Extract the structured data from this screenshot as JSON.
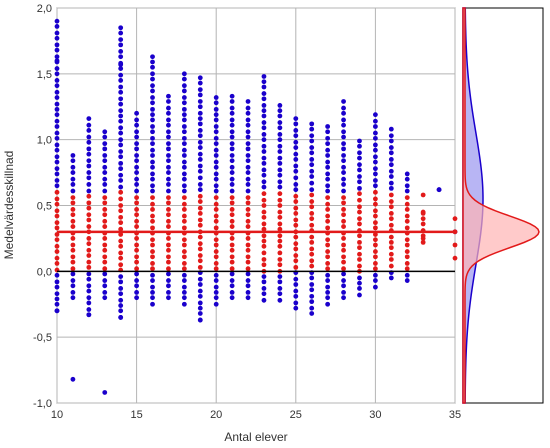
{
  "chart_data": {
    "type": "scatter",
    "xlabel": "Antal elever",
    "ylabel": "Medelvärdesskillnad",
    "xlim": [
      10,
      35
    ],
    "ylim": [
      -1.0,
      2.0
    ],
    "x_ticks": [
      {
        "value": 10,
        "label": "10"
      },
      {
        "value": 15,
        "label": "15"
      },
      {
        "value": 20,
        "label": "20"
      },
      {
        "value": 25,
        "label": "25"
      },
      {
        "value": 30,
        "label": "30"
      },
      {
        "value": 35,
        "label": "35"
      }
    ],
    "y_ticks": [
      {
        "value": 2.0,
        "label": "2,0"
      },
      {
        "value": 1.5,
        "label": "1,5"
      },
      {
        "value": 1.0,
        "label": "1,0"
      },
      {
        "value": 0.5,
        "label": "0,5"
      },
      {
        "value": 0.0,
        "label": "0,0"
      },
      {
        "value": -0.5,
        "label": "-0,5"
      },
      {
        "value": -1.0,
        "label": "-1,0"
      }
    ],
    "grid": true,
    "colors": {
      "blue": "#1a00cc",
      "red": "#e21a1a",
      "zero_line": "#000000",
      "grid": "#b4b4b4"
    },
    "reference_lines": [
      {
        "y": 0.3,
        "color": "#e21a1a"
      },
      {
        "y": 0.0,
        "color": "#000000"
      }
    ],
    "red_band": [
      0.0,
      0.6
    ],
    "x_values": [
      10,
      11,
      12,
      13,
      14,
      15,
      16,
      17,
      18,
      19,
      20,
      21,
      22,
      23,
      24,
      25,
      26,
      27,
      28,
      29,
      30,
      31,
      32,
      33,
      34,
      35
    ],
    "blue_columns": [
      {
        "x": 10,
        "low": -0.3,
        "high": 1.9,
        "extra": [
          -0.3,
          1.6,
          1.9
        ]
      },
      {
        "x": 11,
        "low": -0.2,
        "high": 0.9,
        "extra": [
          -0.82
        ]
      },
      {
        "x": 12,
        "low": -0.33,
        "high": 1.17,
        "extra": [
          -0.33
        ]
      },
      {
        "x": 13,
        "low": -0.2,
        "high": 1.08,
        "extra": [
          -0.92
        ]
      },
      {
        "x": 14,
        "low": -0.35,
        "high": 1.85,
        "extra": [
          1.57,
          1.85,
          -0.35
        ]
      },
      {
        "x": 15,
        "low": -0.2,
        "high": 1.2,
        "extra": []
      },
      {
        "x": 16,
        "low": -0.25,
        "high": 1.63,
        "extra": [
          1.63
        ]
      },
      {
        "x": 17,
        "low": -0.2,
        "high": 1.35,
        "extra": []
      },
      {
        "x": 18,
        "low": -0.25,
        "high": 1.5,
        "extra": [
          1.5
        ]
      },
      {
        "x": 19,
        "low": -0.37,
        "high": 1.48,
        "extra": [
          -0.37
        ]
      },
      {
        "x": 20,
        "low": -0.25,
        "high": 1.35,
        "extra": []
      },
      {
        "x": 21,
        "low": -0.2,
        "high": 1.33,
        "extra": []
      },
      {
        "x": 22,
        "low": -0.2,
        "high": 1.3,
        "extra": []
      },
      {
        "x": 23,
        "low": -0.22,
        "high": 1.48,
        "extra": [
          1.48
        ]
      },
      {
        "x": 24,
        "low": -0.22,
        "high": 1.3,
        "extra": []
      },
      {
        "x": 25,
        "low": -0.28,
        "high": 1.2,
        "extra": []
      },
      {
        "x": 26,
        "low": -0.32,
        "high": 1.15,
        "extra": []
      },
      {
        "x": 27,
        "low": -0.25,
        "high": 1.1,
        "extra": []
      },
      {
        "x": 28,
        "low": -0.2,
        "high": 1.3,
        "extra": []
      },
      {
        "x": 29,
        "low": -0.18,
        "high": 1.0,
        "extra": []
      },
      {
        "x": 30,
        "low": -0.12,
        "high": 1.2,
        "extra": []
      },
      {
        "x": 31,
        "low": -0.05,
        "high": 1.1,
        "extra": []
      },
      {
        "x": 32,
        "low": -0.07,
        "high": 0.75,
        "extra": []
      },
      {
        "x": 33,
        "low": 0.22,
        "high": 0.45,
        "extra": []
      },
      {
        "x": 34,
        "low": 0.62,
        "high": 0.62,
        "extra": []
      },
      {
        "x": 35,
        "low": 0.3,
        "high": 0.3,
        "extra": []
      }
    ],
    "right_panel": {
      "type": "density",
      "series": [
        {
          "color": "#1a00cc",
          "fill": "#9a96f0",
          "peak": 0.55,
          "spread": 0.5
        },
        {
          "color": "#e21a1a",
          "fill": "#ffb4b4",
          "peak": 0.3,
          "spread": 0.12
        }
      ]
    }
  }
}
